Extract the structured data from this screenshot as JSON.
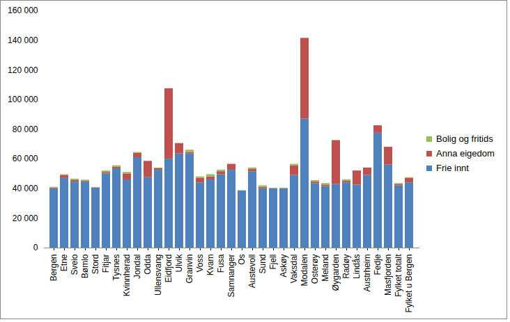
{
  "chart_data": {
    "type": "bar",
    "stacked": true,
    "grid": false,
    "legend": "right",
    "categories": [
      "Bergen",
      "Etne",
      "Sveio",
      "Bømlo",
      "Stord",
      "Fitjar",
      "Tysnes",
      "Kvinnherad",
      "Jondal",
      "Odda",
      "Ullensvang",
      "Eidfjord",
      "Ulvik",
      "Granvin",
      "Voss",
      "Kvam",
      "Fusa",
      "Samnanger",
      "Os",
      "Austevoll",
      "Sund",
      "Fjell",
      "Askøy",
      "Vaksdal",
      "Modalen",
      "Osterøy",
      "Meland",
      "Øygarden",
      "Radøy",
      "Lindås",
      "Austrheim",
      "Fedje",
      "Masfjorden",
      "Fylket totalt",
      "Fylket u Bergen"
    ],
    "series": [
      {
        "name": "Frie innt",
        "color": "#4f81bd",
        "values": [
          40000,
          47000,
          44500,
          44500,
          40500,
          50000,
          53500,
          46000,
          61000,
          47500,
          52500,
          60000,
          63500,
          63500,
          44000,
          46000,
          49500,
          52500,
          38500,
          51500,
          40000,
          40000,
          40000,
          49000,
          87000,
          43500,
          41500,
          43000,
          44000,
          42500,
          49000,
          77500,
          56000,
          42000,
          44000
        ]
      },
      {
        "name": "Anna eigedom",
        "color": "#c0504d",
        "values": [
          500,
          2000,
          1000,
          500,
          200,
          1000,
          1000,
          4000,
          3000,
          11000,
          1000,
          47500,
          7000,
          1000,
          3000,
          2000,
          2000,
          4000,
          0,
          1500,
          1000,
          200,
          200,
          6500,
          54500,
          1000,
          1000,
          29500,
          1000,
          9500,
          5000,
          5000,
          12000,
          1000,
          3000
        ]
      },
      {
        "name": "Bolig og fritids",
        "color": "#9bbb59",
        "values": [
          500,
          500,
          1000,
          800,
          200,
          1000,
          1000,
          1000,
          500,
          0,
          500,
          0,
          0,
          1500,
          1000,
          1500,
          1000,
          0,
          200,
          1000,
          1000,
          200,
          200,
          1000,
          0,
          1000,
          1000,
          0,
          1000,
          0,
          0,
          0,
          0,
          500,
          500
        ]
      }
    ],
    "ylim": [
      0,
      160000
    ],
    "yticks": [
      0,
      {
        "value": 20000,
        "label": "20 000"
      },
      {
        "value": 40000,
        "label": "40 000"
      },
      {
        "value": 60000,
        "label": "60 000"
      },
      {
        "value": 80000,
        "label": "80 000"
      },
      {
        "value": 100000,
        "label": "100 000"
      },
      {
        "value": 120000,
        "label": "120 000"
      },
      {
        "value": 140000,
        "label": "140 000"
      },
      {
        "value": 160000,
        "label": "160 000"
      }
    ]
  }
}
